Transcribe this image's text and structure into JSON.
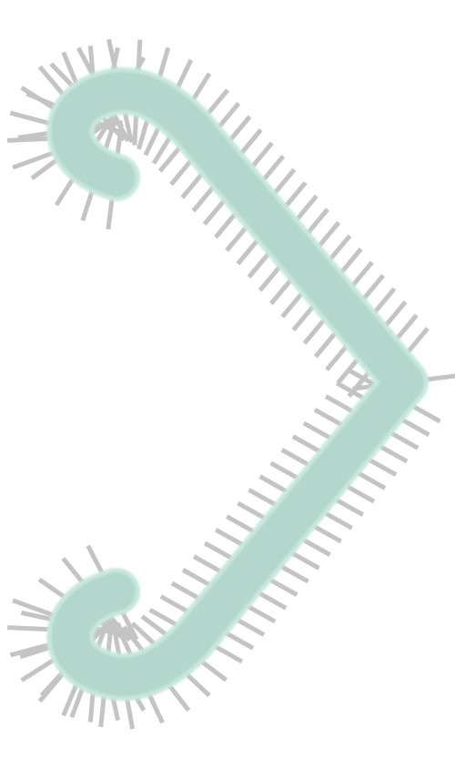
{
  "image": {
    "subject": "bracket-shaped-bristle-cleaner",
    "colors": {
      "background": "#ffffff",
      "bristle": "#c4c4c4",
      "body_fill": "#b3d7cc",
      "body_edge": "#c8e8dc"
    }
  }
}
